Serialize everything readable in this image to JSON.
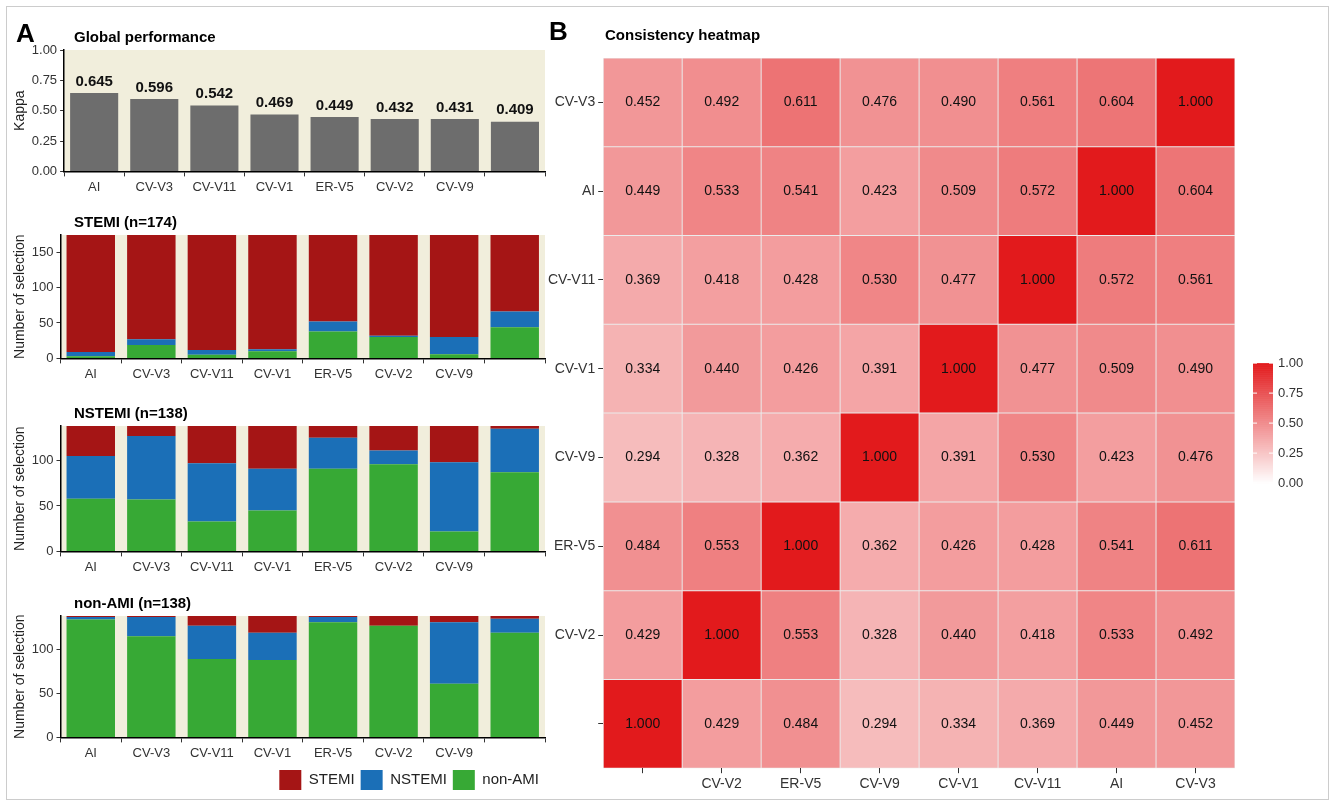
{
  "chart_data": [
    {
      "type": "bar",
      "title": "Global performance",
      "ylabel": "Kappa",
      "annotations": [
        "A"
      ],
      "categories": [
        "AI",
        "CV-V3",
        "CV-V11",
        "CV-V1",
        "ER-V5",
        "CV-V2",
        "CV-V9",
        null
      ],
      "values": [
        0.645,
        0.596,
        0.542,
        0.469,
        0.449,
        0.432,
        0.431,
        0.409
      ],
      "color": "#6d6d6d",
      "data_labels": true,
      "ylim": [
        0,
        1
      ],
      "yticks": [
        {
          "value": 0,
          "label": "0.00"
        },
        {
          "value": 0.25,
          "label": "0.25"
        },
        {
          "value": 0.5,
          "label": "0.50"
        },
        {
          "value": 0.75,
          "label": "0.75"
        },
        {
          "value": 1,
          "label": "1.00"
        }
      ],
      "grid": false,
      "legend": false
    },
    {
      "type": "bar",
      "title": "STEMI (n=174)",
      "ylabel": "Number of selection",
      "stacked": true,
      "categories": [
        "AI",
        "CV-V3",
        "CV-V11",
        "CV-V1",
        "ER-V5",
        "CV-V2",
        "CV-V9",
        null
      ],
      "series": [
        {
          "color": "#37a935",
          "values": [
            3,
            19,
            5,
            10,
            38,
            30,
            6,
            44
          ]
        },
        {
          "color": "#1b6fb7",
          "values": [
            6,
            8,
            7,
            3,
            14,
            2,
            24,
            22
          ]
        },
        {
          "color": "#a51515",
          "values": [
            165,
            147,
            162,
            161,
            122,
            142,
            144,
            108
          ]
        }
      ],
      "ylim": [
        0,
        174
      ],
      "yticks": [
        0,
        50,
        100,
        150
      ],
      "grid": false,
      "legend": false
    },
    {
      "type": "bar",
      "title": "NSTEMI (n=138)",
      "ylabel": "Number of selection",
      "stacked": true,
      "categories": [
        "AI",
        "CV-V3",
        "CV-V11",
        "CV-V1",
        "ER-V5",
        "CV-V2",
        "CV-V9",
        null
      ],
      "series": [
        {
          "color": "#37a935",
          "values": [
            58,
            57,
            33,
            45,
            91,
            96,
            22,
            87
          ]
        },
        {
          "color": "#1b6fb7",
          "values": [
            47,
            70,
            64,
            46,
            34,
            15,
            76,
            48
          ]
        },
        {
          "color": "#a51515",
          "values": [
            33,
            11,
            41,
            47,
            13,
            27,
            40,
            3
          ]
        }
      ],
      "ylim": [
        0,
        138
      ],
      "yticks": [
        0,
        50,
        100
      ],
      "grid": false,
      "legend": false
    },
    {
      "type": "bar",
      "title": "non-AMI (n=138)",
      "ylabel": "Number of selection",
      "stacked": true,
      "categories": [
        "AI",
        "CV-V3",
        "CV-V11",
        "CV-V1",
        "ER-V5",
        "CV-V2",
        "CV-V9",
        null
      ],
      "series": [
        {
          "name": "non-AMI",
          "color": "#37a935",
          "values": [
            134,
            115,
            89,
            88,
            131,
            127,
            61,
            119
          ]
        },
        {
          "name": "NSTEMI",
          "color": "#1b6fb7",
          "values": [
            3,
            22,
            38,
            31,
            6,
            0,
            70,
            16
          ]
        },
        {
          "name": "STEMI",
          "color": "#a51515",
          "values": [
            1,
            1,
            11,
            19,
            1,
            11,
            7,
            3
          ]
        }
      ],
      "ylim": [
        0,
        138
      ],
      "yticks": [
        0,
        50,
        100
      ],
      "grid": false,
      "legend": "bottom right"
    },
    {
      "type": "heatmap",
      "title": "Consistency heatmap",
      "annotations": [
        "B"
      ],
      "categories": [
        null,
        "CV-V2",
        "ER-V5",
        "CV-V9",
        "CV-V1",
        "CV-V11",
        "AI",
        "CV-V3"
      ],
      "y_categories": [
        "CV-V3",
        "AI",
        "CV-V11",
        "CV-V1",
        "CV-V9",
        "ER-V5",
        "CV-V2",
        null
      ],
      "cells": [
        [
          0.452,
          0.492,
          0.611,
          0.476,
          0.49,
          0.561,
          0.604,
          1.0
        ],
        [
          0.449,
          0.533,
          0.541,
          0.423,
          0.509,
          0.572,
          1.0,
          0.604
        ],
        [
          0.369,
          0.418,
          0.428,
          0.53,
          0.477,
          1.0,
          0.572,
          0.561
        ],
        [
          0.334,
          0.44,
          0.426,
          0.391,
          1.0,
          0.477,
          0.509,
          0.49
        ],
        [
          0.294,
          0.328,
          0.362,
          1.0,
          0.391,
          0.53,
          0.423,
          0.476
        ],
        [
          0.484,
          0.553,
          1.0,
          0.362,
          0.426,
          0.428,
          0.541,
          0.611
        ],
        [
          0.429,
          1.0,
          0.553,
          0.328,
          0.44,
          0.418,
          0.533,
          0.492
        ],
        [
          1.0,
          0.429,
          0.484,
          0.294,
          0.334,
          0.369,
          0.449,
          0.452
        ]
      ],
      "cell_labels": [
        [
          "0.452",
          "0.492",
          "0.611",
          "0.476",
          "0.490",
          "0.561",
          "0.604",
          "1.000"
        ],
        [
          "0.449",
          "0.533",
          "0.541",
          "0.423",
          "0.509",
          "0.572",
          "1.000",
          "0.604"
        ],
        [
          "0.369",
          "0.418",
          "0.428",
          "0.530",
          "0.477",
          "1.000",
          "0.572",
          "0.561"
        ],
        [
          "0.334",
          "0.440",
          "0.426",
          "0.391",
          "1.000",
          "0.477",
          "0.509",
          "0.490"
        ],
        [
          "0.294",
          "0.328",
          "0.362",
          "1.000",
          "0.391",
          "0.530",
          "0.423",
          "0.476"
        ],
        [
          "0.484",
          "0.553",
          "1.000",
          "0.362",
          "0.426",
          "0.428",
          "0.541",
          "0.611"
        ],
        [
          "0.429",
          "1.000",
          "0.553",
          "0.328",
          "0.440",
          "0.418",
          "0.533",
          "0.492"
        ],
        [
          "1.000",
          "0.429",
          "0.484",
          "0.294",
          "0.334",
          "0.369",
          "0.449",
          "0.452"
        ]
      ],
      "clim": [
        0,
        1
      ],
      "cticks": [
        {
          "value": 0,
          "label": "0.00"
        },
        {
          "value": 0.25,
          "label": "0.25"
        },
        {
          "value": 0.5,
          "label": "0.50"
        },
        {
          "value": 0.75,
          "label": "0.75"
        },
        {
          "value": 1,
          "label": "1.00"
        }
      ],
      "grid": false,
      "legend": false
    }
  ]
}
